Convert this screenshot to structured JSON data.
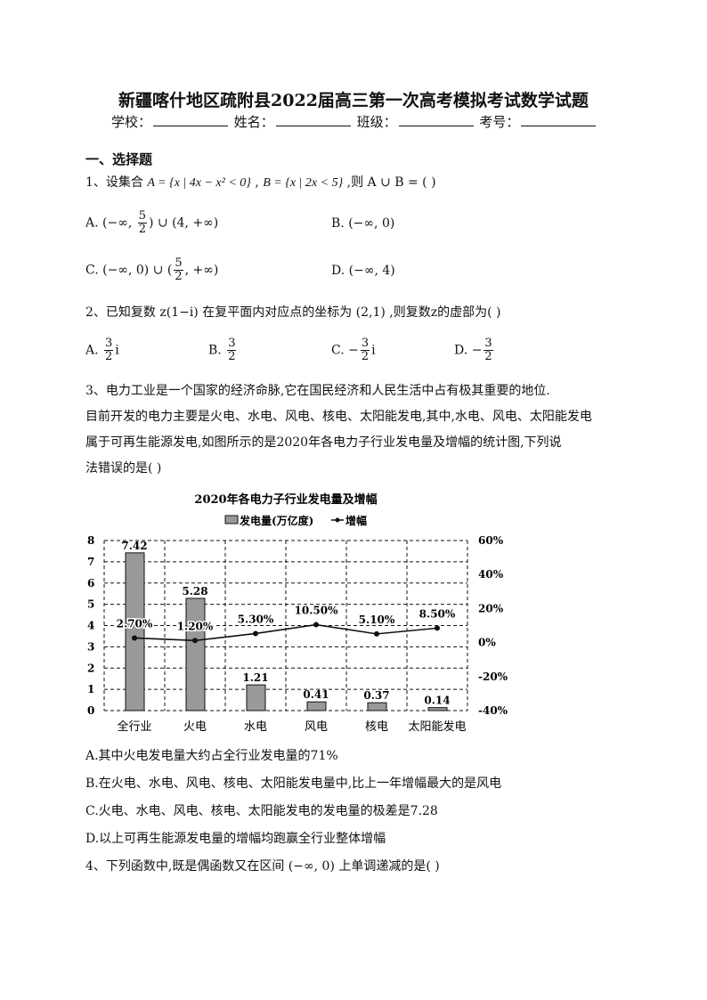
{
  "title": "新疆喀什地区疏附县2022届高三第一次高考模拟考试数学试题",
  "info": {
    "school": "学校：",
    "name": "姓名：",
    "class": "班级：",
    "number": "考号："
  },
  "section": "一、选择题",
  "q1": {
    "stem_a": "1、设集合 ",
    "setA": "A = {x | 4x − x² < 0}",
    "sep": " , ",
    "setB": "B = {x | 2x < 5}",
    "stem_b": " ,则 A ∪ B = (  )",
    "A_pre": "A. (−∞, ",
    "A_num": "5",
    "A_den": "2",
    "A_post": ") ∪ (4, +∞)",
    "B": "B. (−∞, 0)",
    "C_pre": "C. (−∞, 0) ∪ (",
    "C_num": "5",
    "C_den": "2",
    "C_post": ", +∞)",
    "D": "D. (−∞, 4)"
  },
  "q2": {
    "stem": "2、已知复数 z(1−i) 在复平面内对应点的坐标为 (2,1) ,则复数z的虚部为(  )",
    "A_pre": "A. ",
    "A_num": "3",
    "A_den": "2",
    "A_post": "i",
    "B_pre": "B. ",
    "B_num": "3",
    "B_den": "2",
    "C_pre": "C. −",
    "C_num": "3",
    "C_den": "2",
    "C_post": "i",
    "D_pre": "D. −",
    "D_num": "3",
    "D_den": "2"
  },
  "q3": {
    "lines": [
      "3、电力工业是一个国家的经济命脉,它在国民经济和人民生活中占有极其重要的地位.",
      "目前开发的电力主要是火电、水电、风电、核电、太阳能发电,其中,水电、风电、太阳能发电",
      "属于可再生能源发电,如图所示的是2020年各电力子行业发电量及增幅的统计图,下列说",
      "法错误的是(  )"
    ],
    "options": [
      "A.其中火电发电量大约占全行业发电量的71%",
      "B.在火电、水电、风电、核电、太阳能发电量中,比上一年增幅最大的是风电",
      "C.火电、水电、风电、核电、太阳能发电的发电量的极差是7.28",
      "D.以上可再生能源发电量的增幅均跑赢全行业整体增幅"
    ]
  },
  "q4": {
    "stem": "4、下列函数中,既是偶函数又在区间 (−∞, 0) 上单调递减的是(  )"
  },
  "chart_data": {
    "type": "bar+line",
    "title": "2020年各电力子行业发电量及增幅",
    "categories": [
      "全行业",
      "火电",
      "水电",
      "风电",
      "核电",
      "太阳能发电"
    ],
    "series": [
      {
        "name": "发电量(万亿度)",
        "type": "bar",
        "axis": "left",
        "values": [
          7.42,
          5.28,
          1.21,
          0.41,
          0.37,
          0.14
        ],
        "labels": [
          "7.42",
          "5.28",
          "1.21",
          "0.41",
          "0.37",
          "0.14"
        ],
        "color": "#999999"
      },
      {
        "name": "增幅",
        "type": "line",
        "axis": "right",
        "values": [
          2.7,
          1.2,
          5.3,
          10.5,
          5.1,
          8.5
        ],
        "labels": [
          "2.70%",
          "1.20%",
          "5.30%",
          "10.50%",
          "5.10%",
          "8.50%"
        ],
        "color": "#111111"
      }
    ],
    "y_left": {
      "range": [
        0,
        8
      ],
      "ticks": [
        "0",
        "1",
        "2",
        "3",
        "4",
        "5",
        "6",
        "7",
        "8"
      ]
    },
    "y_right": {
      "range": [
        -40,
        60
      ],
      "ticks": [
        "-40%",
        "-20%",
        "0%",
        "20%",
        "40%",
        "60%"
      ]
    },
    "grid": "dashed",
    "legend": "top"
  }
}
